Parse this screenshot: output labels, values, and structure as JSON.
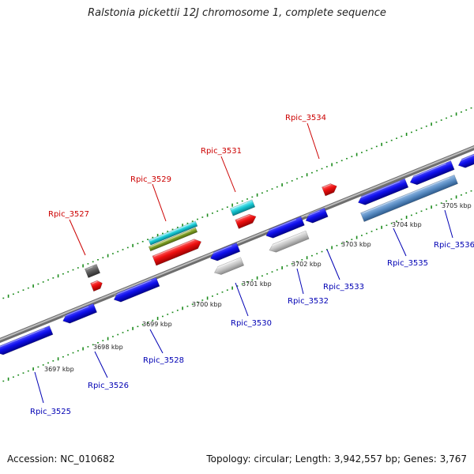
{
  "title": "Ralstonia pickettii 12J chromosome 1, complete sequence",
  "footer": {
    "accession": "Accession: NC_010682",
    "summary": "Topology: circular; Length: 3,942,557 bp; Genes: 3,767"
  },
  "colors": {
    "backbone": "#8c8c8c",
    "tick": "#1a8a1a",
    "forward_label": "#cc0000",
    "reverse_label": "#0000b4",
    "cds": "#1010ee",
    "rna": "#e01010",
    "misc": "#bdbdbd",
    "trna": "#18c8d4",
    "operon": "#5a8dc4"
  },
  "scale_labels": [
    "3697 kbp",
    "3698 kbp",
    "3699 kbp",
    "3700 kbp",
    "3701 kbp",
    "3702 kbp",
    "3703 kbp",
    "3704 kbp",
    "3705 kbp"
  ],
  "gene_labels": {
    "forward": [
      "Rpic_3527",
      "Rpic_3529",
      "Rpic_3531",
      "Rpic_3534"
    ],
    "reverse": [
      "Rpic_3525",
      "Rpic_3526",
      "Rpic_3528",
      "Rpic_3530",
      "Rpic_3532",
      "Rpic_3533",
      "Rpic_3535",
      "Rpic_3536"
    ]
  }
}
